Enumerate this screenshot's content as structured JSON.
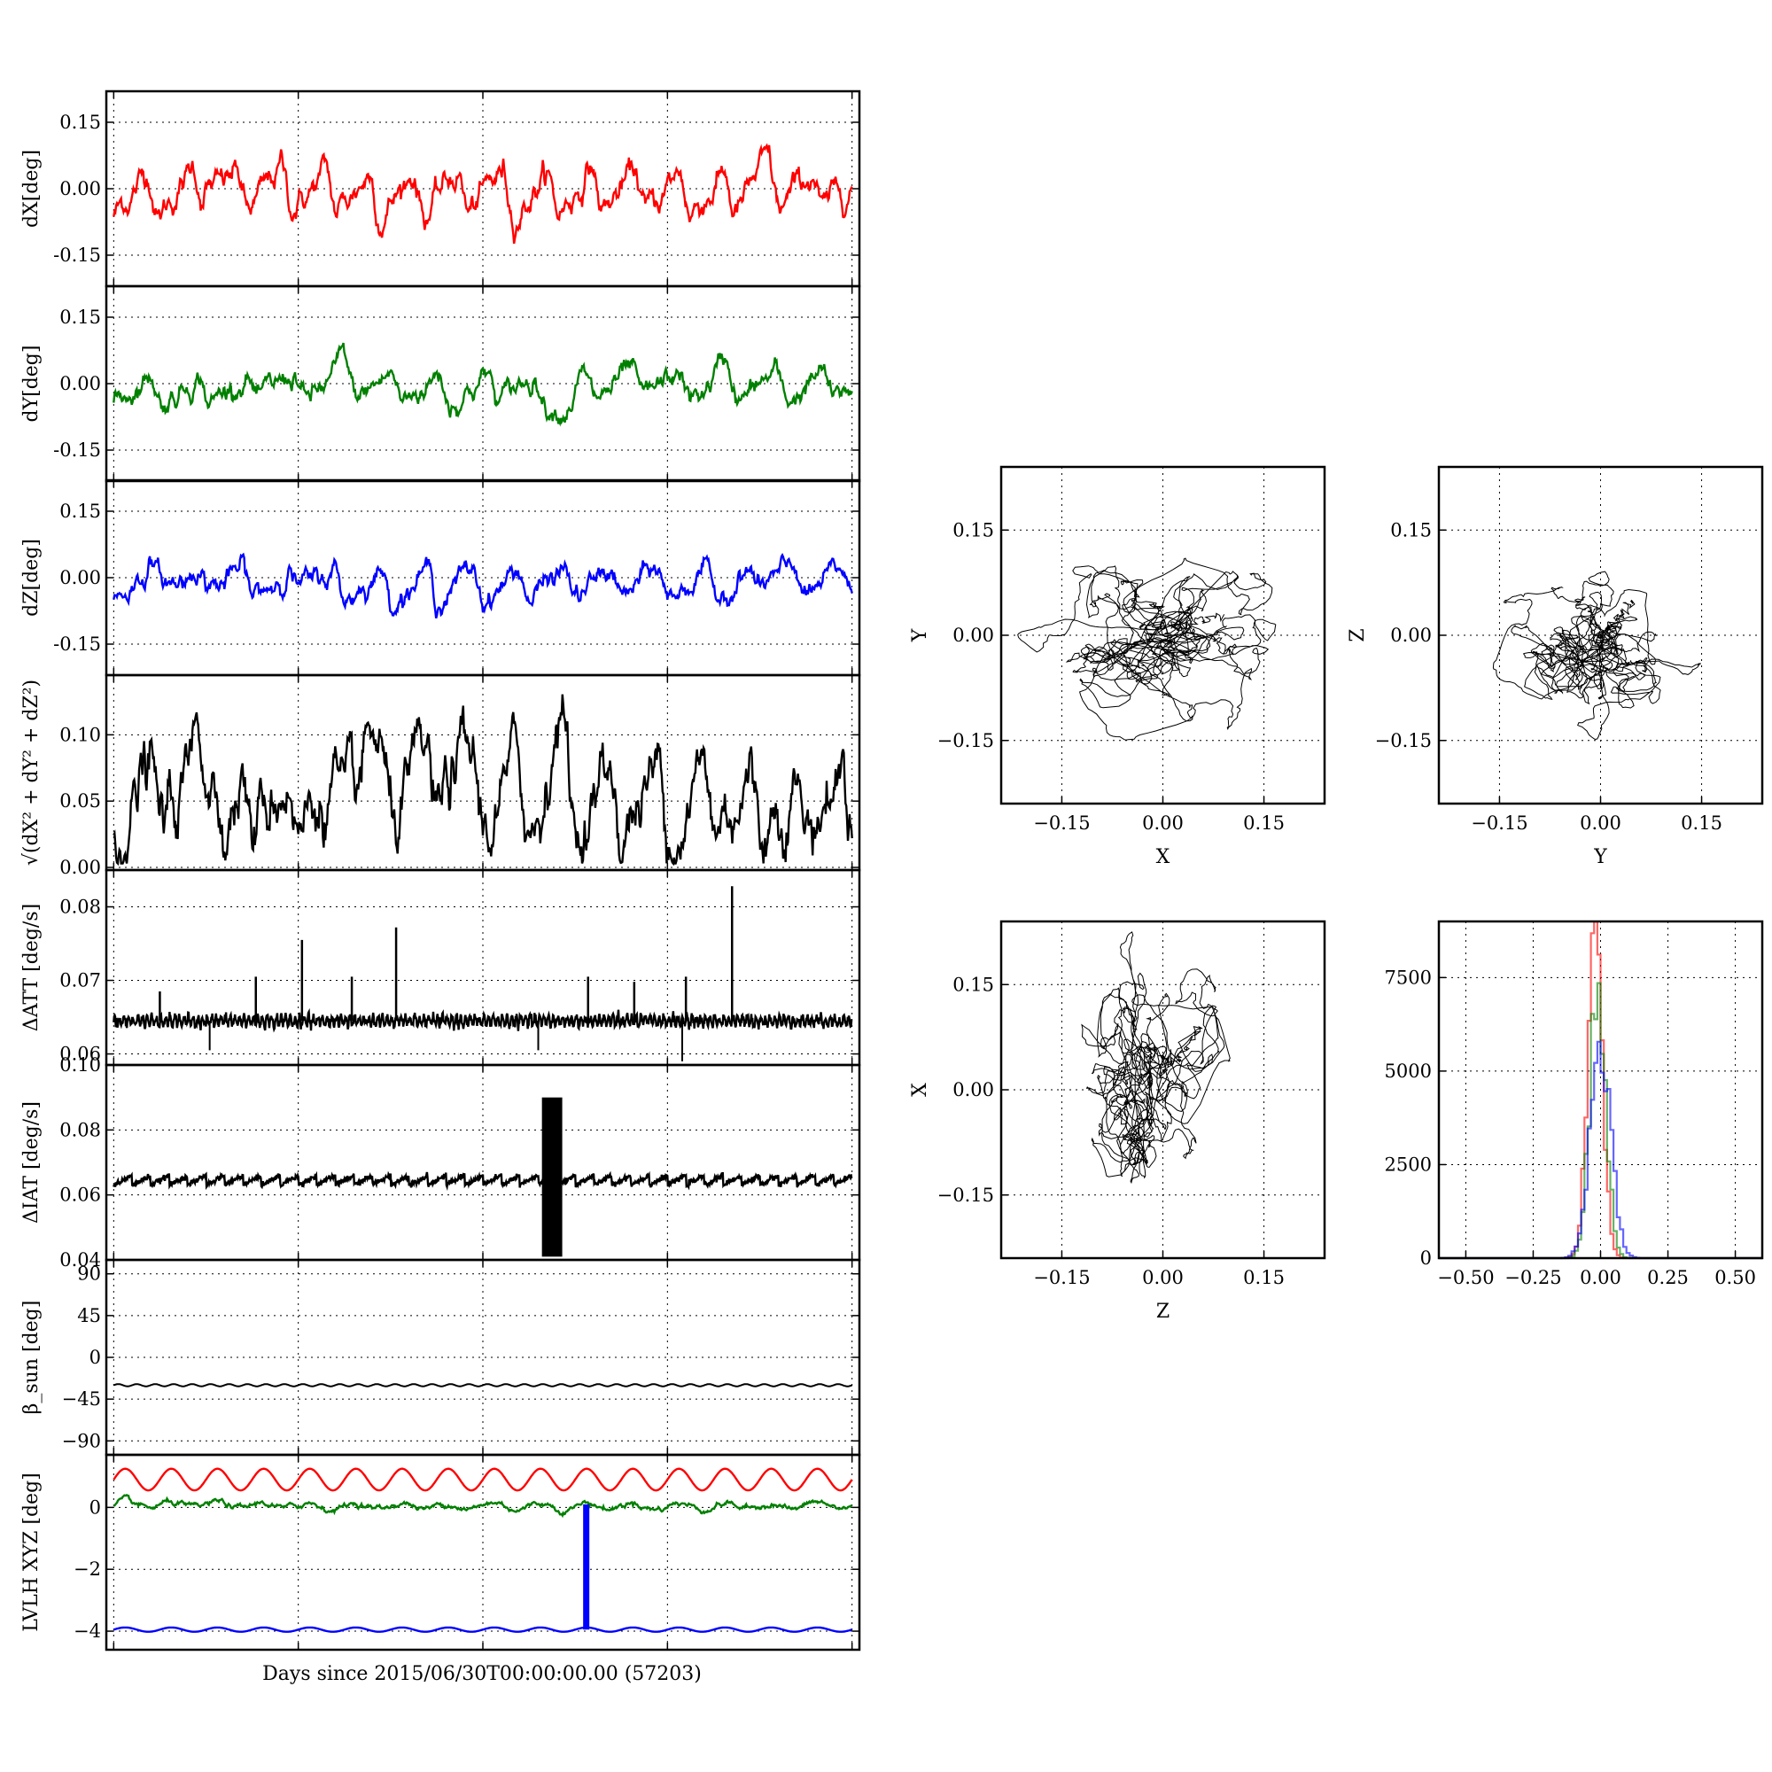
{
  "figure": {
    "xlabel": "Days since 2015/06/30T00:00:00.00 (57203)"
  },
  "colors": {
    "red": "#ff0000",
    "green": "#008000",
    "blue": "#0000ff",
    "black": "#000000"
  },
  "chart_data": [
    {
      "type": "line",
      "id": "dX",
      "ylabel": "dX[deg]",
      "ylim": [
        -0.22,
        0.22
      ],
      "yticks": [
        "0.15",
        "0.00",
        "-0.15"
      ],
      "ytick_values": [
        0.15,
        0,
        -0.15
      ],
      "xlim": [
        -0.04,
        4.04
      ],
      "grid": true,
      "series": [
        {
          "color": "red",
          "baseline": -0.01,
          "period": 0.24,
          "amplitude": 0.05,
          "noise": 0.01,
          "peaks": [
            [
              0.5,
              0.05
            ],
            [
              0.95,
              0.02
            ],
            [
              2.6,
              0.02
            ],
            [
              3.5,
              0.02
            ]
          ]
        }
      ]
    },
    {
      "type": "line",
      "id": "dY",
      "ylabel": "dY[deg]",
      "ylim": [
        -0.22,
        0.22
      ],
      "yticks": [
        "0.15",
        "0.00",
        "-0.15"
      ],
      "ytick_values": [
        0.15,
        0,
        -0.15
      ],
      "xlim": [
        -0.04,
        4.04
      ],
      "grid": true,
      "series": [
        {
          "color": "green",
          "baseline": -0.01,
          "period": 0.26,
          "amplitude": 0.035,
          "noise": 0.008,
          "peaks": [
            [
              1.25,
              0.03
            ],
            [
              2.45,
              -0.04
            ],
            [
              3.3,
              0.03
            ]
          ]
        }
      ]
    },
    {
      "type": "line",
      "id": "dZ",
      "ylabel": "dZ[deg]",
      "ylim": [
        -0.22,
        0.22
      ],
      "yticks": [
        "0.15",
        "0.00",
        "-0.15"
      ],
      "ytick_values": [
        0.15,
        0,
        -0.15
      ],
      "xlim": [
        -0.04,
        4.04
      ],
      "grid": true,
      "series": [
        {
          "color": "blue",
          "baseline": -0.015,
          "period": 0.25,
          "amplitude": 0.035,
          "noise": 0.008,
          "peaks": [
            [
              0.25,
              0.04
            ],
            [
              0.5,
              0.04
            ],
            [
              1.0,
              0.03
            ],
            [
              3.55,
              0.02
            ]
          ]
        }
      ]
    },
    {
      "type": "line",
      "id": "dR",
      "ylabel_math": "√(dX² + dY² + dZ²)",
      "ylim": [
        -0.002,
        0.145
      ],
      "yticks": [
        "0.10",
        "0.05",
        "0.00"
      ],
      "ytick_values": [
        0.1,
        0.05,
        0
      ],
      "xlim": [
        -0.04,
        4.04
      ],
      "grid": true,
      "series": [
        {
          "color": "black",
          "baseline": 0.05,
          "period": 0.25,
          "amplitude": 0.025,
          "noise": 0.008,
          "peaks": [
            [
              0.5,
              0.055
            ],
            [
              2.4,
              0.055
            ],
            [
              1.4,
              0.025
            ],
            [
              1.85,
              0.025
            ]
          ]
        }
      ]
    },
    {
      "type": "line",
      "id": "dATT",
      "ylabel": "ΔATT [deg/s]",
      "ylim": [
        0.0585,
        0.085
      ],
      "yticks": [
        "0.08",
        "0.07",
        "0.06"
      ],
      "ytick_values": [
        0.08,
        0.07,
        0.06
      ],
      "xlim": [
        -0.04,
        4.04
      ],
      "grid": true,
      "series": [
        {
          "color": "black",
          "baseline": 0.0645,
          "period": 0.025,
          "amplitude": 0.0006,
          "noise": 0.0003,
          "spikes": [
            [
              0.25,
              0.0685
            ],
            [
              0.77,
              0.0705
            ],
            [
              1.02,
              0.0755
            ],
            [
              1.29,
              0.0705
            ],
            [
              1.53,
              0.0772
            ],
            [
              2.57,
              0.0705
            ],
            [
              2.82,
              0.0698
            ],
            [
              3.1,
              0.0705
            ],
            [
              3.35,
              0.0828
            ]
          ],
          "dips": [
            [
              0.52,
              0.0605
            ],
            [
              2.3,
              0.0605
            ],
            [
              3.08,
              0.059
            ]
          ]
        }
      ]
    },
    {
      "type": "line",
      "id": "dIAT",
      "ylabel": "ΔIAT [deg/s]",
      "ylim": [
        0.04,
        0.1
      ],
      "yticks": [
        "0.10",
        "0.08",
        "0.06",
        "0.04"
      ],
      "ytick_values": [
        0.1,
        0.08,
        0.06,
        0.04
      ],
      "xlim": [
        -0.04,
        4.04
      ],
      "grid": true,
      "series": [
        {
          "color": "black",
          "baseline": 0.0645,
          "period": 0.1,
          "amplitude": 0.0015,
          "noise": 0.0004,
          "burst": {
            "start": 2.32,
            "end": 2.43,
            "low": 0.041,
            "high": 0.09
          }
        }
      ]
    },
    {
      "type": "line",
      "id": "beta",
      "ylabel_math": "β_sun [deg]",
      "ylim": [
        -105,
        105
      ],
      "yticks": [
        "90",
        "45",
        "0",
        "−45",
        "−90"
      ],
      "ytick_values": [
        90,
        45,
        0,
        -45,
        -90
      ],
      "xlim": [
        -0.04,
        4.04
      ],
      "grid": true,
      "series": [
        {
          "color": "black",
          "baseline": -30,
          "period": 0.1,
          "amplitude": 1.2,
          "noise": 0
        }
      ]
    },
    {
      "type": "line",
      "id": "lvlh",
      "ylabel": "LVLH XYZ [deg]",
      "ylim": [
        -4.6,
        1.7
      ],
      "yticks": [
        "0",
        "−2",
        "−4"
      ],
      "ytick_values": [
        0,
        -2,
        -4
      ],
      "xlim": [
        -0.04,
        4.04
      ],
      "grid": true,
      "xtick_values": [
        0,
        1,
        2,
        3,
        4
      ],
      "xticklabels_visible": false,
      "series": [
        {
          "color": "red",
          "baseline": 0.9,
          "period": 0.25,
          "amplitude": 0.35,
          "noise": 0
        },
        {
          "color": "green",
          "baseline": 0.05,
          "period": 0.25,
          "amplitude": 0.1,
          "noise": 0.03
        },
        {
          "color": "blue",
          "baseline": -3.95,
          "period": 0.25,
          "amplitude": 0.07,
          "noise": 0,
          "spike": {
            "x": 2.56,
            "to": 0.1
          }
        }
      ]
    },
    {
      "type": "scatter",
      "id": "XY",
      "xlabel": "X",
      "ylabel": "Y",
      "xlim": [
        -0.24,
        0.24
      ],
      "ylim": [
        -0.24,
        0.24
      ],
      "xticks": [
        "−0.15",
        "0.00",
        "0.15"
      ],
      "yticks": [
        "0.15",
        "0.00",
        "−0.15"
      ],
      "tick_values": [
        -0.15,
        0,
        0.15
      ],
      "grid": true,
      "center": [
        -0.01,
        -0.01
      ],
      "spread": [
        0.04,
        0.03
      ],
      "tail": [
        0.09,
        0.03
      ]
    },
    {
      "type": "scatter",
      "id": "YZ",
      "xlabel": "Y",
      "ylabel": "Z",
      "xlim": [
        -0.24,
        0.24
      ],
      "ylim": [
        -0.24,
        0.24
      ],
      "xticks": [
        "−0.15",
        "0.00",
        "0.15"
      ],
      "yticks": [
        "0.15",
        "0.00",
        "−0.15"
      ],
      "tick_values": [
        -0.15,
        0,
        0.15
      ],
      "grid": true,
      "center": [
        -0.02,
        -0.02
      ],
      "spread": [
        0.03,
        0.025
      ],
      "tail": [
        0.05,
        0.05
      ]
    },
    {
      "type": "scatter",
      "id": "ZX",
      "xlabel": "Z",
      "ylabel": "X",
      "xlim": [
        -0.24,
        0.24
      ],
      "ylim": [
        -0.24,
        0.24
      ],
      "xticks": [
        "−0.15",
        "0.00",
        "0.15"
      ],
      "yticks": [
        "0.15",
        "0.00",
        "−0.15"
      ],
      "tick_values": [
        -0.15,
        0,
        0.15
      ],
      "grid": true,
      "center": [
        -0.02,
        0.0
      ],
      "spread": [
        0.03,
        0.04
      ],
      "tail": [
        0.06,
        0.09
      ]
    },
    {
      "type": "histogram",
      "id": "hist",
      "xlim": [
        -0.6,
        0.6
      ],
      "ylim": [
        0,
        9000
      ],
      "xticks": [
        "−0.50",
        "−0.25",
        "0.00",
        "0.25",
        "0.50"
      ],
      "xtick_values": [
        -0.5,
        -0.25,
        0,
        0.25,
        0.5
      ],
      "yticks": [
        "7500",
        "5000",
        "2500",
        "0"
      ],
      "ytick_values": [
        7500,
        5000,
        2500,
        0
      ],
      "grid": true,
      "series": [
        {
          "color": "red",
          "center": -0.02,
          "sigma": 0.028,
          "peak": 8100
        },
        {
          "color": "green",
          "center": -0.01,
          "sigma": 0.03,
          "peak": 7200
        },
        {
          "color": "blue",
          "center": 0.0,
          "sigma": 0.038,
          "peak": 5800
        }
      ]
    }
  ]
}
